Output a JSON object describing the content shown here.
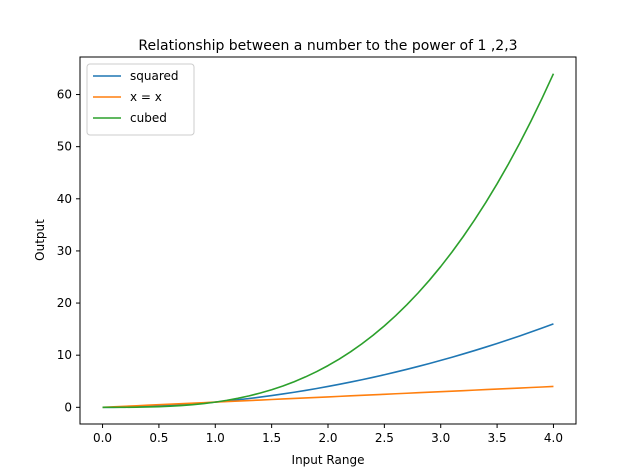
{
  "chart_data": {
    "type": "line",
    "title": "Relationship between a number to the power of 1 ,2,3",
    "xlabel": "Input Range",
    "ylabel": "Output",
    "xlim": [
      -0.2,
      4.2
    ],
    "ylim": [
      -3.2,
      67.2
    ],
    "xticks": [
      0.0,
      0.5,
      1.0,
      1.5,
      2.0,
      2.5,
      3.0,
      3.5,
      4.0
    ],
    "xtick_labels": [
      "0.0",
      "0.5",
      "1.0",
      "1.5",
      "2.0",
      "2.5",
      "3.0",
      "3.5",
      "4.0"
    ],
    "yticks": [
      0,
      10,
      20,
      30,
      40,
      50,
      60
    ],
    "ytick_labels": [
      "0",
      "10",
      "20",
      "30",
      "40",
      "50",
      "60"
    ],
    "grid": false,
    "legend_position": "upper-left",
    "x": [
      0.0,
      0.1,
      0.2,
      0.3,
      0.4,
      0.5,
      0.6,
      0.7,
      0.8,
      0.9,
      1.0,
      1.1,
      1.2,
      1.3,
      1.4,
      1.5,
      1.6,
      1.7,
      1.8,
      1.9,
      2.0,
      2.1,
      2.2,
      2.3,
      2.4,
      2.5,
      2.6,
      2.7,
      2.8,
      2.9,
      3.0,
      3.1,
      3.2,
      3.3,
      3.4,
      3.5,
      3.6,
      3.7,
      3.8,
      3.9,
      4.0
    ],
    "series": [
      {
        "name": "squared",
        "color": "#1f77b4",
        "values": [
          0.0,
          0.01,
          0.04,
          0.09,
          0.16,
          0.25,
          0.36,
          0.49,
          0.64,
          0.81,
          1.0,
          1.21,
          1.44,
          1.69,
          1.96,
          2.25,
          2.56,
          2.89,
          3.24,
          3.61,
          4.0,
          4.41,
          4.84,
          5.29,
          5.76,
          6.25,
          6.76,
          7.29,
          7.84,
          8.41,
          9.0,
          9.61,
          10.24,
          10.89,
          11.56,
          12.25,
          12.96,
          13.69,
          14.44,
          15.21,
          16.0
        ]
      },
      {
        "name": "x = x",
        "color": "#ff7f0e",
        "values": [
          0.0,
          0.1,
          0.2,
          0.3,
          0.4,
          0.5,
          0.6,
          0.7,
          0.8,
          0.9,
          1.0,
          1.1,
          1.2,
          1.3,
          1.4,
          1.5,
          1.6,
          1.7,
          1.8,
          1.9,
          2.0,
          2.1,
          2.2,
          2.3,
          2.4,
          2.5,
          2.6,
          2.7,
          2.8,
          2.9,
          3.0,
          3.1,
          3.2,
          3.3,
          3.4,
          3.5,
          3.6,
          3.7,
          3.8,
          3.9,
          4.0
        ]
      },
      {
        "name": "cubed",
        "color": "#2ca02c",
        "values": [
          0.0,
          0.001,
          0.008,
          0.027,
          0.064,
          0.125,
          0.216,
          0.343,
          0.512,
          0.729,
          1.0,
          1.331,
          1.728,
          2.197,
          2.744,
          3.375,
          4.096,
          4.913,
          5.832,
          6.859,
          8.0,
          9.261,
          10.648,
          12.167,
          13.824,
          15.625,
          17.576,
          19.683,
          21.952,
          24.389,
          27.0,
          29.791,
          32.768,
          35.937,
          39.304,
          42.875,
          46.656,
          50.653,
          54.872,
          59.319,
          64.0
        ]
      }
    ]
  }
}
